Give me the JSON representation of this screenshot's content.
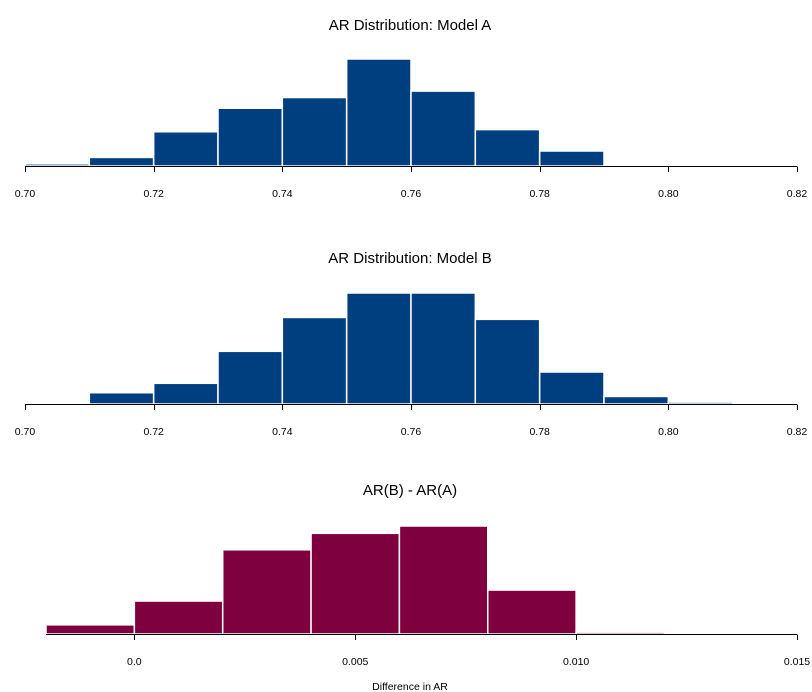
{
  "chart_data": [
    {
      "type": "histogram",
      "title": "AR Distribution: Model A",
      "xlabel": "",
      "ylabel": "",
      "bar_color": "#003f7f",
      "edge_color": "#ffffff",
      "xlim": [
        0.7,
        0.82
      ],
      "x_ticks": [
        0.7,
        0.72,
        0.74,
        0.76,
        0.78,
        0.8,
        0.82
      ],
      "x_tick_labels": [
        "0.70",
        "0.72",
        "0.74",
        "0.76",
        "0.78",
        "0.80",
        "0.82"
      ],
      "bins": [
        0.7,
        0.71,
        0.72,
        0.73,
        0.74,
        0.75,
        0.76,
        0.77,
        0.78,
        0.79,
        0.8
      ],
      "values": [
        1,
        4,
        16,
        27,
        32,
        50,
        35,
        17,
        7,
        0.3
      ],
      "grid": false,
      "legend": "none"
    },
    {
      "type": "histogram",
      "title": "AR Distribution: Model B",
      "xlabel": "",
      "ylabel": "",
      "bar_color": "#003f7f",
      "edge_color": "#ffffff",
      "xlim": [
        0.7,
        0.82
      ],
      "x_ticks": [
        0.7,
        0.72,
        0.74,
        0.76,
        0.78,
        0.8,
        0.82
      ],
      "x_tick_labels": [
        "0.70",
        "0.72",
        "0.74",
        "0.76",
        "0.78",
        "0.80",
        "0.82"
      ],
      "bins": [
        0.71,
        0.72,
        0.73,
        0.74,
        0.75,
        0.76,
        0.77,
        0.78,
        0.79,
        0.8,
        0.81
      ],
      "values": [
        6,
        11,
        28,
        46,
        59,
        59,
        45,
        17,
        4,
        1
      ],
      "grid": false,
      "legend": "none"
    },
    {
      "type": "histogram",
      "title": "AR(B) - AR(A)",
      "xlabel": "Difference in AR",
      "ylabel": "",
      "bar_color": "#7f003f",
      "edge_color": "#ffffff",
      "xlim": [
        -0.002,
        0.015
      ],
      "x_ticks": [
        0.0,
        0.005,
        0.01,
        0.015
      ],
      "x_tick_labels": [
        "0.0",
        "0.005",
        "0.010",
        "0.015"
      ],
      "bins": [
        -0.002,
        0.0,
        0.002,
        0.004,
        0.006,
        0.008,
        0.01,
        0.012
      ],
      "values": [
        5,
        18,
        46,
        55,
        59,
        24,
        1
      ],
      "grid": false,
      "legend": "none"
    }
  ]
}
